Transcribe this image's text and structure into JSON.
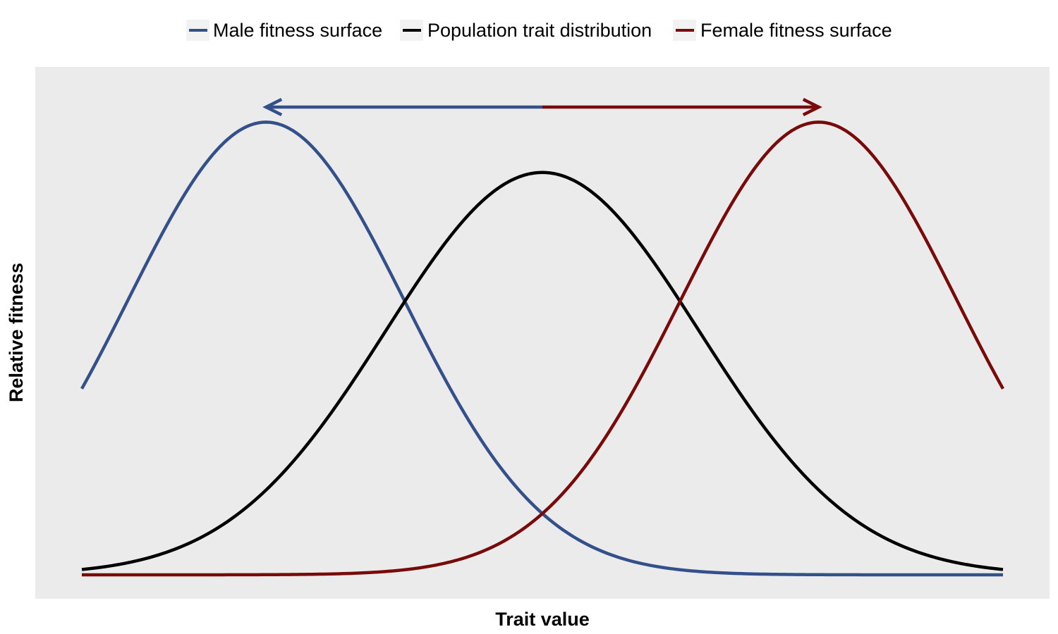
{
  "chart_data": {
    "type": "line",
    "title": "",
    "xlabel": "Trait value",
    "ylabel": "Relative fitness",
    "x_ticks_visible": false,
    "y_ticks_visible": false,
    "grid": false,
    "panel_background": "#EBEBEB",
    "xlim": [
      0,
      1
    ],
    "ylim": [
      0,
      1
    ],
    "legend": {
      "position": "top",
      "entries": [
        {
          "label": "Male fitness surface",
          "color": "#34508A"
        },
        {
          "label": "Population trait distribution",
          "color": "#000000"
        },
        {
          "label": "Female fitness surface",
          "color": "#780A0A"
        }
      ]
    },
    "series": [
      {
        "name": "Male fitness surface",
        "color": "#34508A",
        "shape": "gaussian",
        "peak_x": 0.2,
        "peak_y": 0.9,
        "sd": 0.15,
        "range": [
          0,
          1
        ]
      },
      {
        "name": "Population trait distribution",
        "color": "#000000",
        "shape": "gaussian",
        "peak_x": 0.5,
        "peak_y": 0.8,
        "sd": 0.17,
        "range": [
          0,
          1
        ]
      },
      {
        "name": "Female fitness surface",
        "color": "#780A0A",
        "shape": "gaussian",
        "peak_x": 0.8,
        "peak_y": 0.9,
        "sd": 0.15,
        "range": [
          0,
          1
        ]
      }
    ],
    "annotations": [
      {
        "type": "arrow",
        "from_x": 0.5,
        "to_x": 0.2,
        "y": 0.93,
        "color": "#34508A"
      },
      {
        "type": "arrow",
        "from_x": 0.5,
        "to_x": 0.8,
        "y": 0.93,
        "color": "#780A0A"
      }
    ]
  }
}
